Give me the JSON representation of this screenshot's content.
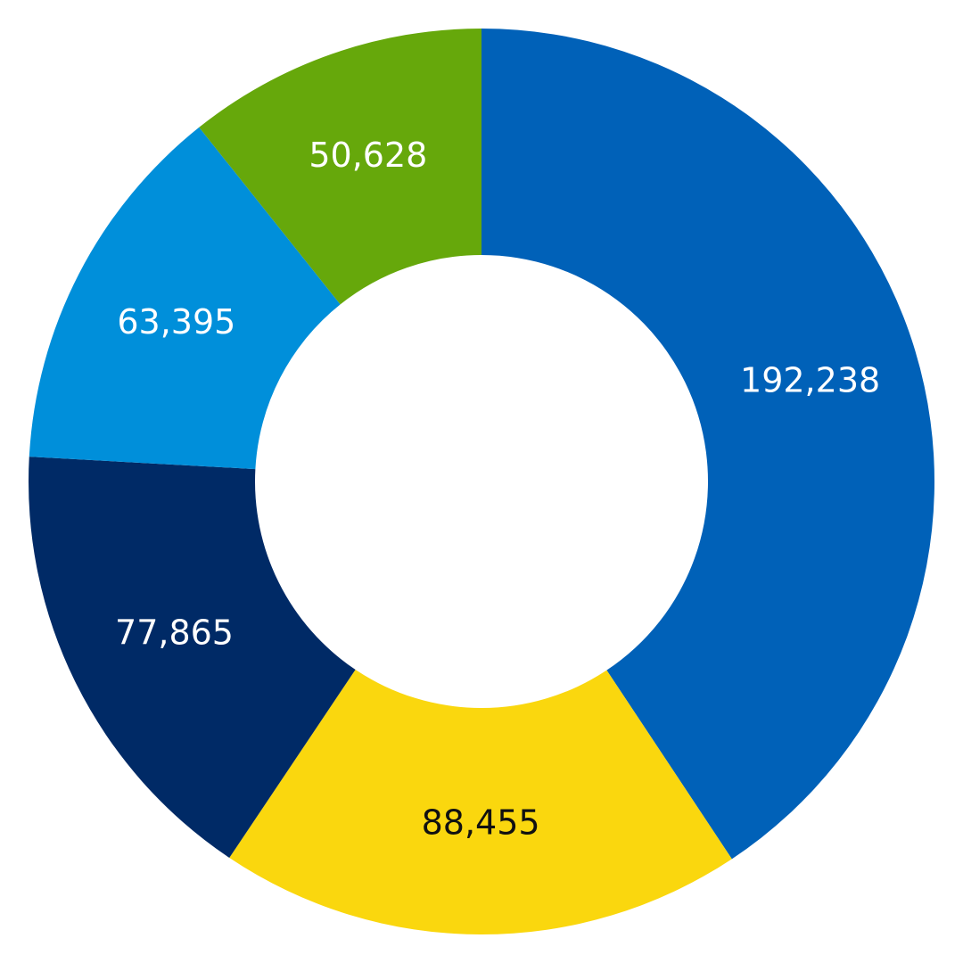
{
  "chart_data": {
    "type": "pie",
    "variant": "donut",
    "start": "top",
    "direction": "clockwise",
    "title": "",
    "legend": "none",
    "slices": [
      {
        "value": 192238,
        "label": "192,238",
        "color": "#0061B8",
        "label_color": "#FFFFFF"
      },
      {
        "value": 88455,
        "label": "88,455",
        "color": "#FAD70E",
        "label_color": "#111111"
      },
      {
        "value": 77865,
        "label": "77,865",
        "color": "#002A66",
        "label_color": "#FFFFFF"
      },
      {
        "value": 63395,
        "label": "63,395",
        "color": "#008FDA",
        "label_color": "#FFFFFF"
      },
      {
        "value": 50628,
        "label": "50,628",
        "color": "#66A80B",
        "label_color": "#FFFFFF"
      }
    ]
  }
}
